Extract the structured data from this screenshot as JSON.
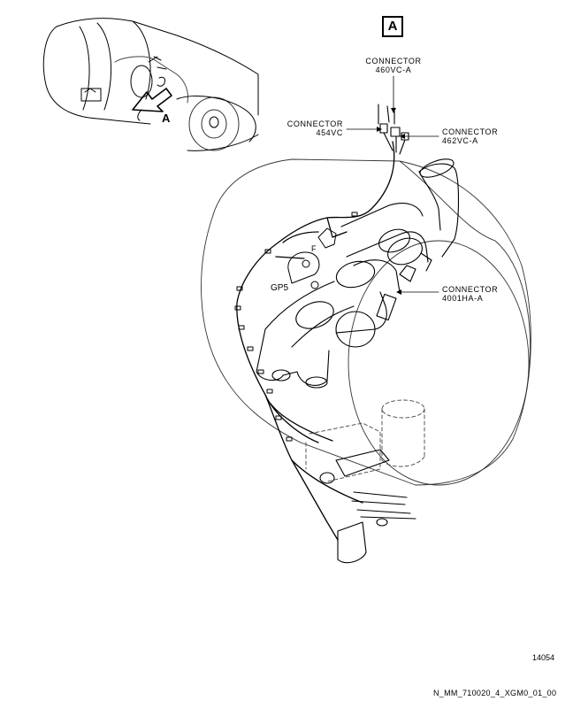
{
  "view_label": "A",
  "detail_arrow_label": "A",
  "callouts": {
    "c460": {
      "line1": "CONNECTOR",
      "line2": "460VC-A"
    },
    "c454": {
      "line1": "CONNECTOR",
      "line2": "454VC"
    },
    "c462": {
      "line1": "CONNECTOR",
      "line2": "462VC-A"
    },
    "c4001": {
      "line1": "CONNECTOR",
      "line2": "4001HA-A"
    }
  },
  "ground_point": "GP5",
  "small_letter_f": "F",
  "figure_number": "14054",
  "drawing_code": "N_MM_710020_4_XGM0_01_00"
}
